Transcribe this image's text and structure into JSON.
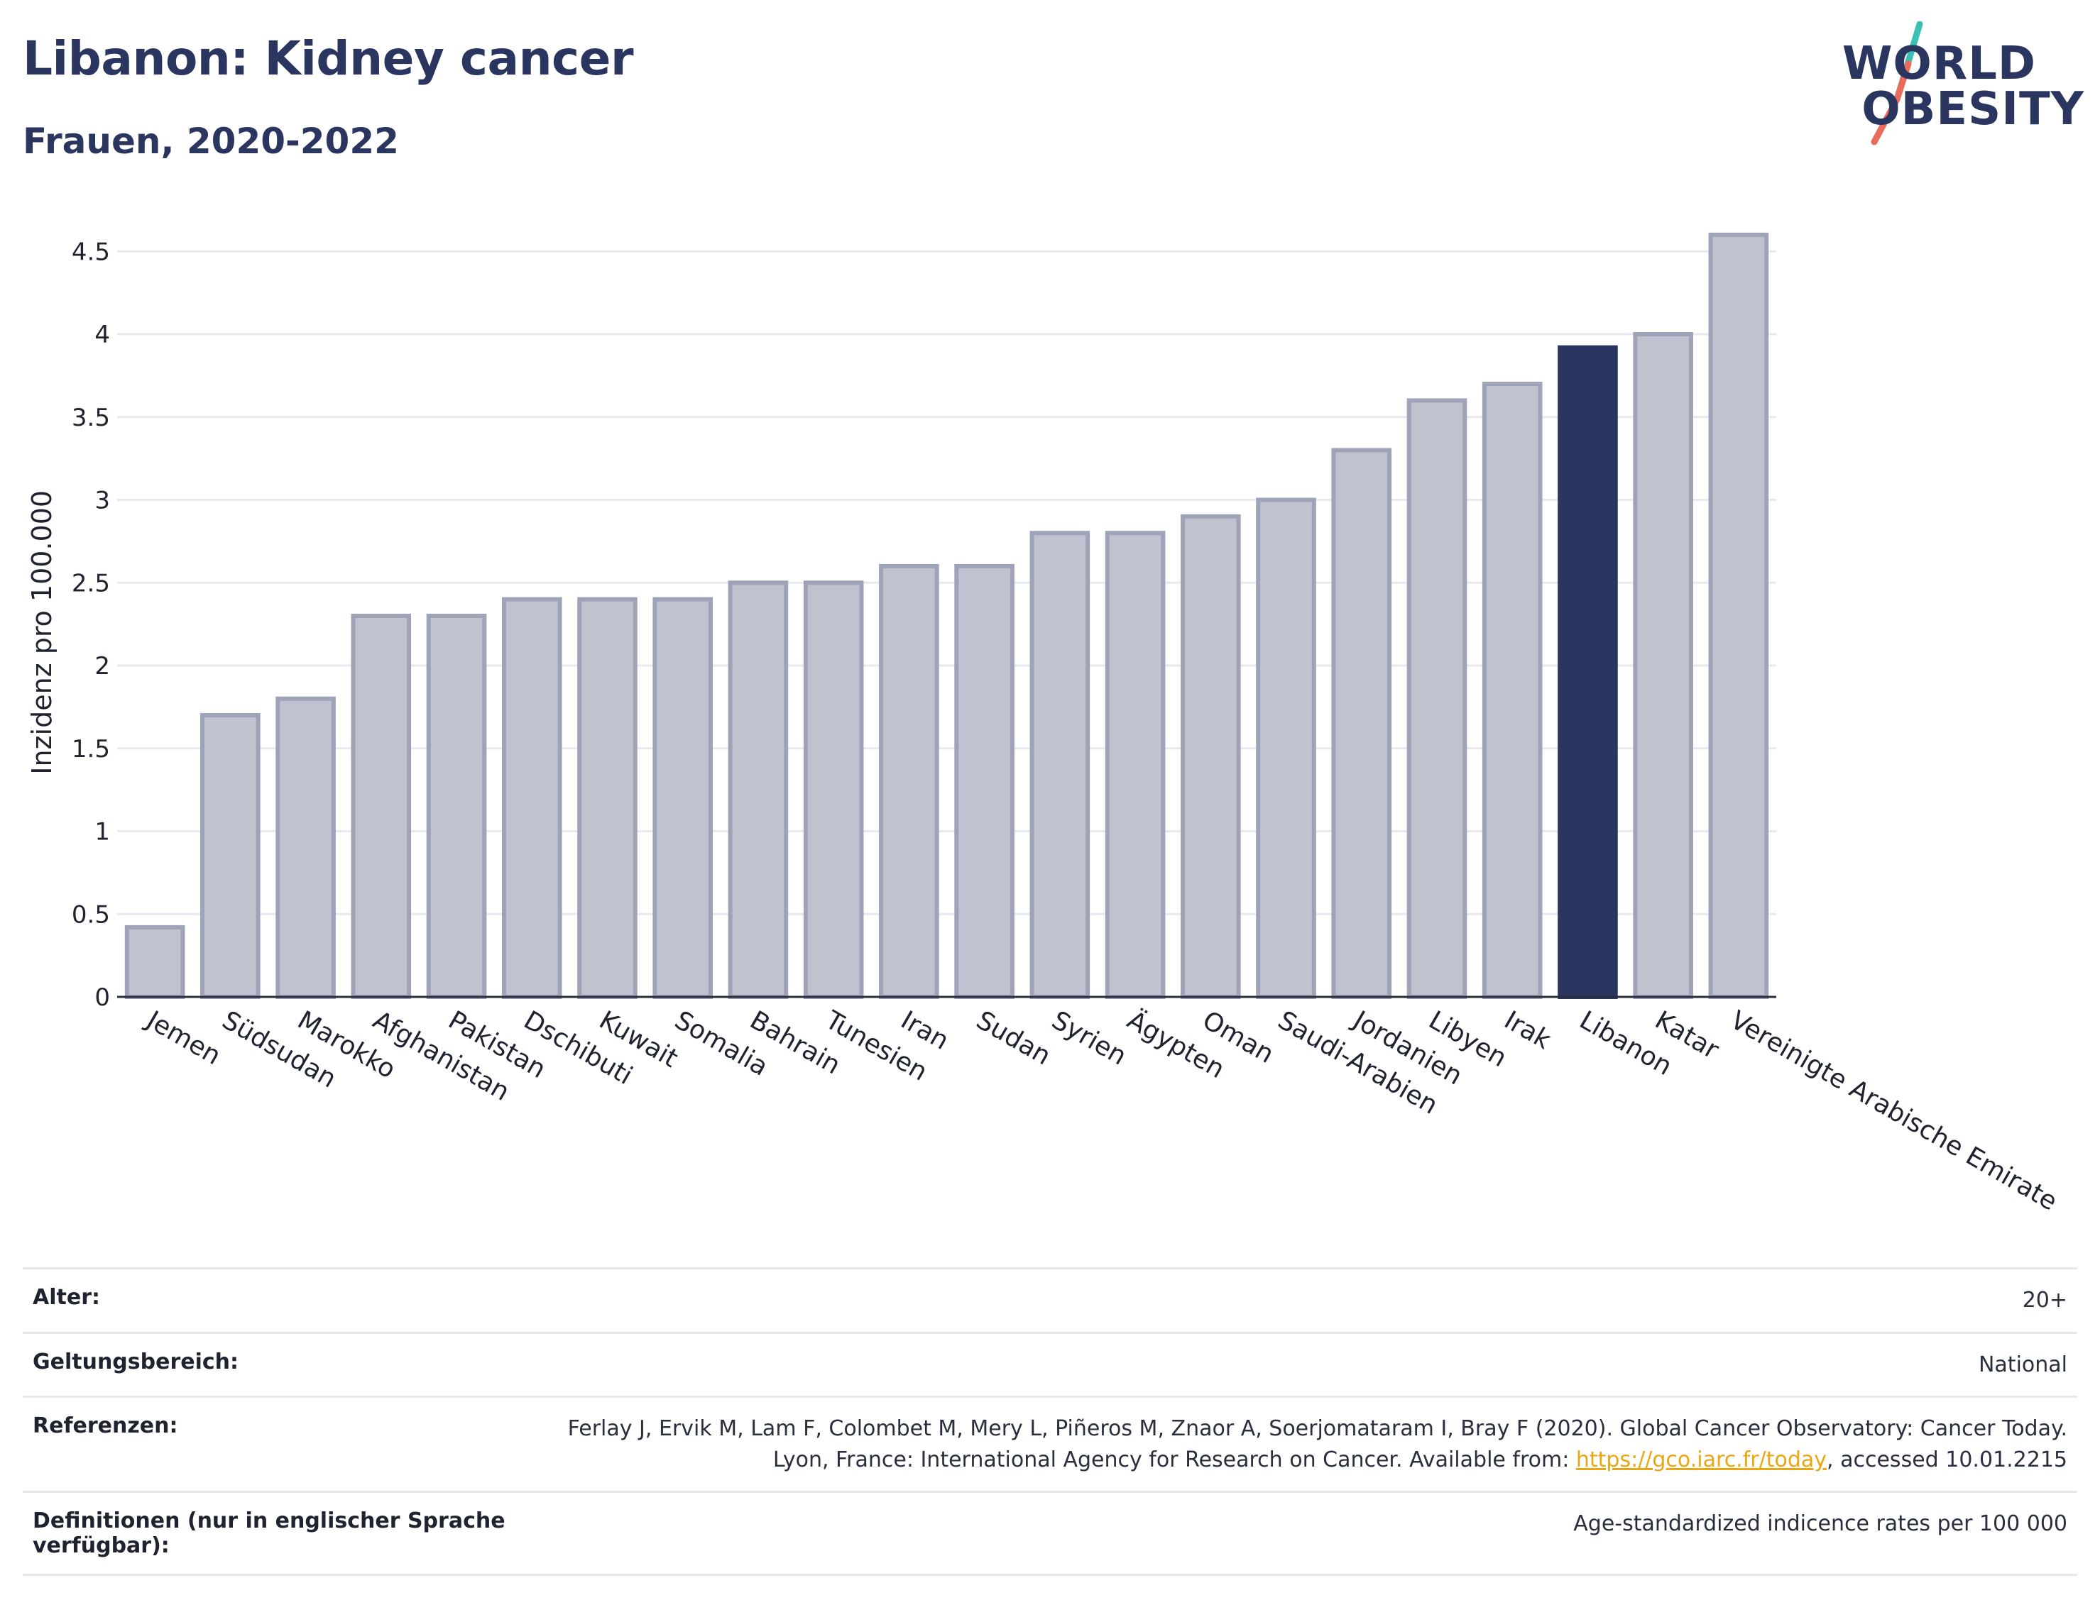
{
  "header": {
    "title": "Libanon: Kidney cancer",
    "subtitle": "Frauen, 2020-2022"
  },
  "logo": {
    "line1": "WORLD",
    "line2": "OBESITY"
  },
  "colors": {
    "bar_default": "#bfc2cf",
    "bar_default_stroke": "#9ea3b8",
    "bar_highlight": "#2b3660",
    "title": "#2b3660",
    "grid": "#e8e9ee",
    "link": "#e8a713"
  },
  "chart_data": {
    "type": "bar",
    "ylabel": "Inzidenz pro 100.000",
    "ylim": [
      0,
      4.75
    ],
    "yticks": [
      "0",
      "0.5",
      "1",
      "1.5",
      "2",
      "2.5",
      "3",
      "3.5",
      "4",
      "4.5"
    ],
    "yticks_values": [
      0,
      0.5,
      1,
      1.5,
      2,
      2.5,
      3,
      3.5,
      4,
      4.5
    ],
    "grid": true,
    "highlight": "Libanon",
    "categories": [
      "Jemen",
      "Südsudan",
      "Marokko",
      "Afghanistan",
      "Pakistan",
      "Dschibuti",
      "Kuwait",
      "Somalia",
      "Bahrain",
      "Tunesien",
      "Iran",
      "Sudan",
      "Syrien",
      "Ägypten",
      "Oman",
      "Saudi-Arabien",
      "Jordanien",
      "Libyen",
      "Irak",
      "Libanon",
      "Katar",
      "Vereinigte Arabische Emirate"
    ],
    "values": [
      0.42,
      1.7,
      1.8,
      2.3,
      2.3,
      2.4,
      2.4,
      2.4,
      2.5,
      2.5,
      2.6,
      2.6,
      2.8,
      2.8,
      2.9,
      3.0,
      3.3,
      3.6,
      3.7,
      3.92,
      4.0,
      4.6
    ]
  },
  "meta": {
    "rows": [
      {
        "key": "Alter:",
        "value": "20+"
      },
      {
        "key": "Geltungsbereich:",
        "value": "National"
      },
      {
        "key": "Referenzen:",
        "value_before": "Ferlay J, Ervik M, Lam F, Colombet M, Mery L, Piñeros M, Znaor A, Soerjomataram I, Bray F (2020). Global Cancer Observatory: Cancer Today. Lyon, France: International Agency for Research on Cancer. Available from: ",
        "link": "https://gco.iarc.fr/today",
        "value_after": ", accessed 10.01.2215"
      },
      {
        "key": "Definitionen (nur in englischer Sprache verfügbar):",
        "value": "Age-standardized indicence rates per 100 000"
      }
    ]
  }
}
